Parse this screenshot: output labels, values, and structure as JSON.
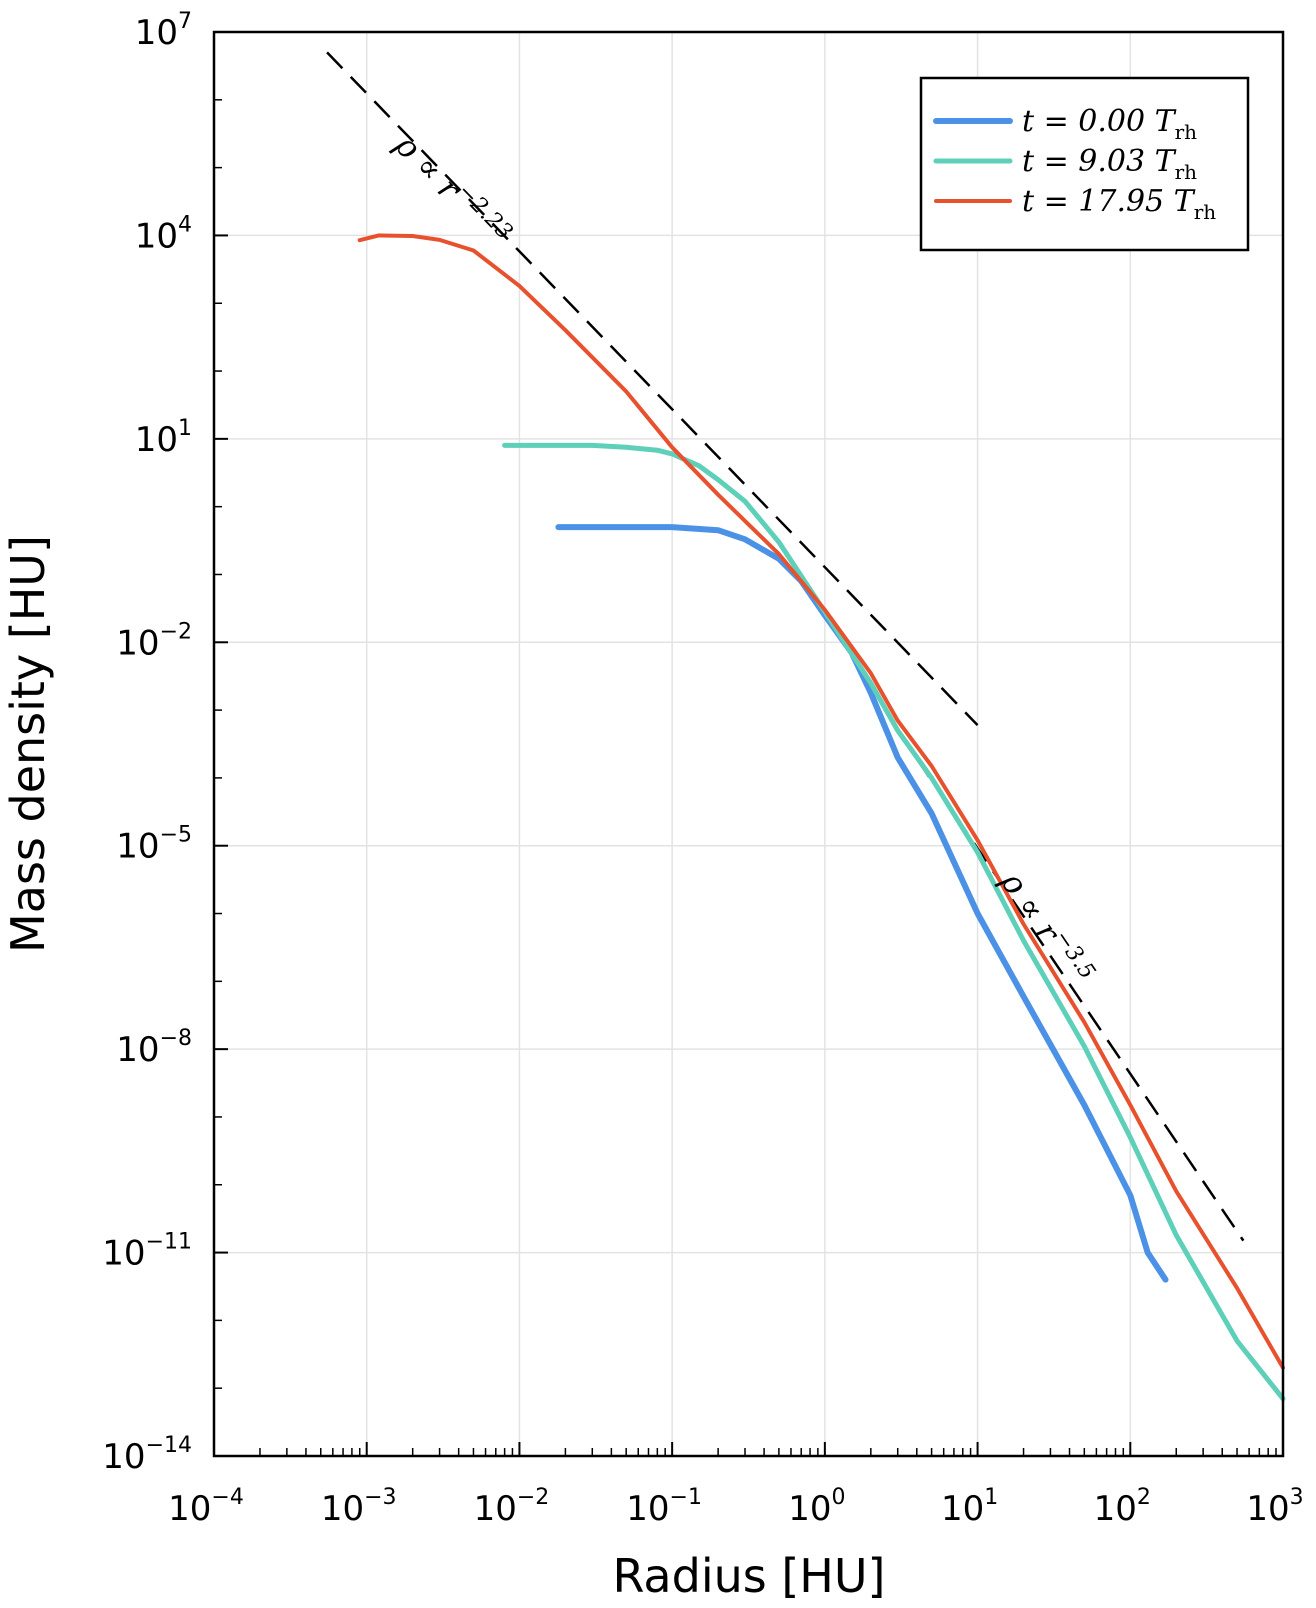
{
  "chart_data": {
    "type": "line",
    "xlabel": "Radius [HU]",
    "ylabel": "Mass density [HU]",
    "xscale": "log",
    "yscale": "log",
    "xlim": [
      0.0001,
      1000
    ],
    "ylim": [
      1e-14,
      10000000
    ],
    "grid": true,
    "legend_position": "top-right",
    "x_ticks": [
      {
        "value": 0.0001,
        "base": "10",
        "exp": "−4"
      },
      {
        "value": 0.001,
        "base": "10",
        "exp": "−3"
      },
      {
        "value": 0.01,
        "base": "10",
        "exp": "−2"
      },
      {
        "value": 0.1,
        "base": "10",
        "exp": "−1"
      },
      {
        "value": 1,
        "base": "10",
        "exp": "0"
      },
      {
        "value": 10,
        "base": "10",
        "exp": "1"
      },
      {
        "value": 100,
        "base": "10",
        "exp": "2"
      },
      {
        "value": 1000,
        "base": "10",
        "exp": "3"
      }
    ],
    "y_ticks": [
      {
        "value": 1e-14,
        "base": "10",
        "exp": "−14"
      },
      {
        "value": 1e-11,
        "base": "10",
        "exp": "−11"
      },
      {
        "value": 1e-08,
        "base": "10",
        "exp": "−8"
      },
      {
        "value": 1e-05,
        "base": "10",
        "exp": "−5"
      },
      {
        "value": 0.01,
        "base": "10",
        "exp": "−2"
      },
      {
        "value": 10,
        "base": "10",
        "exp": "1"
      },
      {
        "value": 10000,
        "base": "10",
        "exp": "4"
      },
      {
        "value": 10000000,
        "base": "10",
        "exp": "7"
      }
    ],
    "series": [
      {
        "name": "t = 0.00 T_rh",
        "legend_main": "t = 0.00 T",
        "legend_sub": "rh",
        "color": "#4b92e6",
        "width": 6,
        "x": [
          0.018,
          0.03,
          0.05,
          0.1,
          0.2,
          0.3,
          0.5,
          0.7,
          1.0,
          1.5,
          2.0,
          3.0,
          5.0,
          10,
          20,
          50,
          100,
          130,
          170
        ],
        "y": [
          0.5,
          0.5,
          0.5,
          0.5,
          0.45,
          0.33,
          0.17,
          0.08,
          0.025,
          0.007,
          0.0018,
          0.0002,
          3e-05,
          1e-06,
          6e-08,
          1.5e-09,
          7e-11,
          1e-11,
          4e-12
        ]
      },
      {
        "name": "t = 9.03 T_rh",
        "legend_main": "t = 9.03 T",
        "legend_sub": "rh",
        "color": "#5ecfb8",
        "width": 5,
        "x": [
          0.008,
          0.015,
          0.03,
          0.05,
          0.08,
          0.1,
          0.15,
          0.2,
          0.3,
          0.5,
          1.0,
          2.0,
          3.0,
          5.0,
          10,
          20,
          50,
          100,
          200,
          500,
          1000
        ],
        "y": [
          8,
          8,
          8,
          7.5,
          6.8,
          6,
          4,
          2.5,
          1.2,
          0.3,
          0.028,
          0.0025,
          0.0005,
          0.0001,
          8e-06,
          4e-07,
          1.1e-08,
          5e-10,
          1.8e-11,
          5e-13,
          7e-14
        ]
      },
      {
        "name": "t = 17.95 T_rh",
        "legend_main": "t = 17.95 T",
        "legend_sub": "rh",
        "color": "#e8512e",
        "width": 4,
        "x": [
          0.0009,
          0.0012,
          0.002,
          0.003,
          0.005,
          0.01,
          0.02,
          0.05,
          0.1,
          0.2,
          0.5,
          1.0,
          2.0,
          3.0,
          5.0,
          10,
          20,
          50,
          100,
          200,
          500,
          1000
        ],
        "y": [
          8500,
          10000,
          9800,
          8600,
          6000,
          1800,
          400,
          50,
          7.5,
          1.5,
          0.2,
          0.03,
          0.0035,
          0.0007,
          0.00015,
          1.2e-05,
          7e-07,
          2.5e-08,
          1.5e-09,
          8e-11,
          3e-12,
          2e-13
        ]
      }
    ],
    "reference_lines": [
      {
        "name": "rho ∝ r^-2.23",
        "x": [
          0.00055,
          10
        ],
        "y": [
          5000000,
          0.0006
        ],
        "color": "#000000",
        "style": "dashed"
      },
      {
        "name": "rho ∝ r^-3.5",
        "x": [
          3.0,
          550
        ],
        "y": [
          0.0005,
          1.5e-11
        ],
        "color": "#000000",
        "style": "dashed"
      }
    ],
    "annotations": [
      {
        "text_main": "ρ ∝ r",
        "exponent": "−2.23",
        "anchor": [
          0.0015,
          200000
        ]
      },
      {
        "text_main": "ρ ∝ r",
        "exponent": "−3.5",
        "anchor": [
          14,
          3e-06
        ]
      }
    ]
  }
}
